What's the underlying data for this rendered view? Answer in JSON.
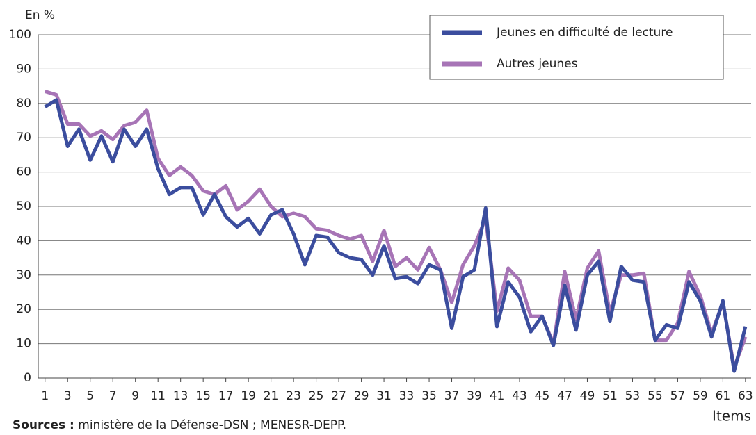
{
  "chart_data": {
    "type": "line",
    "y_label": "En %",
    "x_label": "Items",
    "source": {
      "label": "Sources :",
      "text": " ministère de la Défense-DSN ; MENESR-DEPP."
    },
    "x": [
      1,
      2,
      3,
      4,
      5,
      6,
      7,
      8,
      9,
      10,
      11,
      12,
      13,
      14,
      15,
      16,
      17,
      18,
      19,
      20,
      21,
      22,
      23,
      24,
      25,
      26,
      27,
      28,
      29,
      30,
      31,
      32,
      33,
      34,
      35,
      36,
      37,
      38,
      39,
      40,
      41,
      42,
      43,
      44,
      45,
      46,
      47,
      48,
      49,
      50,
      51,
      52,
      53,
      54,
      55,
      56,
      57,
      58,
      59,
      60,
      61,
      62,
      63
    ],
    "series": [
      {
        "name": "Jeunes en difficulté de lecture",
        "color": "#3b4d9e",
        "values": [
          79,
          81,
          67.5,
          72.5,
          63.5,
          70.5,
          63,
          72.5,
          67.5,
          72.5,
          61,
          53.5,
          55.5,
          55.5,
          47.5,
          53.5,
          47,
          44,
          46.5,
          42,
          47.5,
          49,
          42,
          33,
          41.5,
          41,
          36.5,
          35,
          34.5,
          30,
          38.5,
          29,
          29.5,
          27.5,
          33,
          31.5,
          14.5,
          29.5,
          31.5,
          49.5,
          15,
          28,
          23.5,
          13.5,
          18,
          9.5,
          27,
          14,
          30,
          34,
          16.5,
          32.5,
          28.5,
          28,
          11,
          15.5,
          14.5,
          28,
          22.5,
          12,
          22.5,
          2,
          15
        ]
      },
      {
        "name": "Autres jeunes",
        "color": "#a774b6",
        "values": [
          83.5,
          82.5,
          74,
          74,
          70.5,
          72,
          69.5,
          73.5,
          74.5,
          78,
          64,
          59,
          61.5,
          59,
          54.5,
          53.5,
          56,
          49,
          51.5,
          55,
          50,
          47,
          48,
          47,
          43.5,
          43,
          41.5,
          40.5,
          41.5,
          34,
          43,
          32.5,
          35,
          31.5,
          38,
          31.5,
          22,
          33,
          38.5,
          46.5,
          19.5,
          32,
          28.5,
          18,
          18,
          10,
          31,
          17,
          32,
          37,
          19,
          30,
          30,
          30.5,
          11,
          11,
          16,
          31,
          24,
          13,
          22,
          3,
          12
        ]
      }
    ],
    "xlim": [
      0.4,
      63.5
    ],
    "xticks": [
      1,
      3,
      5,
      7,
      9,
      11,
      13,
      15,
      17,
      19,
      21,
      23,
      25,
      27,
      29,
      31,
      33,
      35,
      37,
      39,
      41,
      43,
      45,
      47,
      49,
      51,
      53,
      55,
      57,
      59,
      61,
      63
    ],
    "ylim": [
      0,
      100
    ],
    "yticks": [
      0,
      10,
      20,
      30,
      40,
      50,
      60,
      70,
      80,
      90,
      100
    ],
    "grid": true,
    "legend": "top-right"
  }
}
